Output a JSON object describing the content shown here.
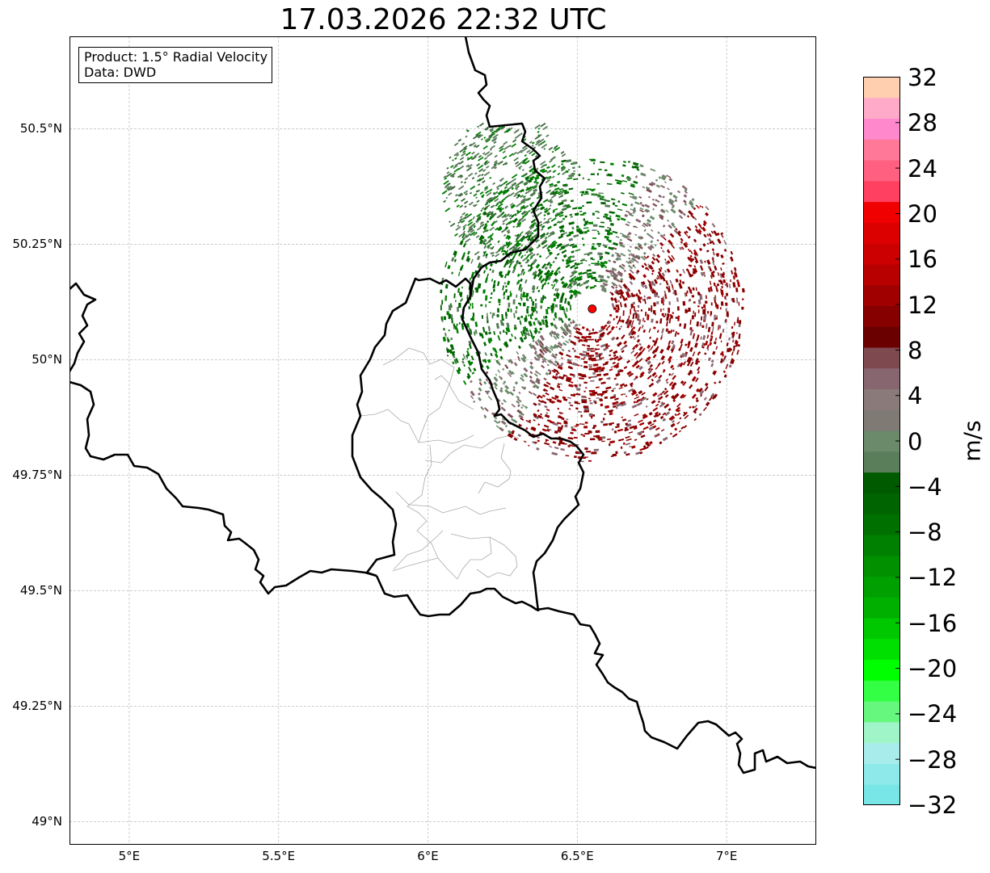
{
  "title": "17.03.2026 22:32 UTC",
  "info": {
    "product": "Product: 1.5° Radial Velocity",
    "data": "Data: DWD"
  },
  "map": {
    "lon_range": [
      4.8,
      7.3
    ],
    "lat_range": [
      48.95,
      50.7
    ],
    "lat_ticks": [
      {
        "value": 50.5,
        "label": "50.5°N"
      },
      {
        "value": 50.25,
        "label": "50.25°N"
      },
      {
        "value": 50.0,
        "label": "50°N"
      },
      {
        "value": 49.75,
        "label": "49.75°N"
      },
      {
        "value": 49.5,
        "label": "49.5°N"
      },
      {
        "value": 49.25,
        "label": "49.25°N"
      },
      {
        "value": 49.0,
        "label": "49°N"
      }
    ],
    "lon_ticks": [
      {
        "value": 5.0,
        "label": "5°E"
      },
      {
        "value": 5.5,
        "label": "5.5°E"
      },
      {
        "value": 6.0,
        "label": "6°E"
      },
      {
        "value": 6.5,
        "label": "6.5°E"
      },
      {
        "value": 7.0,
        "label": "7°E"
      }
    ],
    "radar_site": {
      "lon": 6.55,
      "lat": 50.11,
      "color": "#ff0000"
    },
    "border_color": "#000000",
    "admin_line_color": "#aaaaaa"
  },
  "colorbar": {
    "unit": "m/s",
    "min": -32,
    "max": 32,
    "step": 4,
    "tick_labels": [
      "32",
      "28",
      "24",
      "20",
      "16",
      "12",
      "8",
      "4",
      "0",
      "−4",
      "−8",
      "−12",
      "−16",
      "−20",
      "−24",
      "−28",
      "−32"
    ],
    "colors_bottom_to_top": [
      "#78e6e6",
      "#8eeaea",
      "#a8ecec",
      "#a0f5c8",
      "#66f87e",
      "#33ff44",
      "#00ff00",
      "#00e000",
      "#00c800",
      "#00b000",
      "#00a000",
      "#009000",
      "#008000",
      "#007000",
      "#006400",
      "#005a00",
      "#5a7d5a",
      "#6a8a6a",
      "#7f7a74",
      "#8a7a7a",
      "#886670",
      "#7e4a50",
      "#6b0000",
      "#860000",
      "#a00000",
      "#b80000",
      "#cc0000",
      "#dd0000",
      "#f00000",
      "#ff4060",
      "#ff6080",
      "#ff7898",
      "#ff88cc",
      "#ffaac8",
      "#ffcfb0"
    ]
  }
}
